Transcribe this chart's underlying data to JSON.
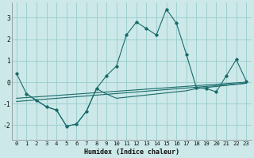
{
  "xlabel": "Humidex (Indice chaleur)",
  "ylabel": "",
  "background_color": "#cce8e8",
  "grid_color": "#99cccc",
  "line_color": "#1a6b6b",
  "xlim": [
    -0.5,
    23.5
  ],
  "ylim": [
    -2.7,
    3.7
  ],
  "yticks": [
    -2,
    -1,
    0,
    1,
    2,
    3
  ],
  "xticks": [
    0,
    1,
    2,
    3,
    4,
    5,
    6,
    7,
    8,
    9,
    10,
    11,
    12,
    13,
    14,
    15,
    16,
    17,
    18,
    19,
    20,
    21,
    22,
    23
  ],
  "series1_x": [
    0,
    1,
    2,
    3,
    4,
    5,
    6,
    7,
    8,
    9,
    10,
    11,
    12,
    13,
    14,
    15,
    16,
    17,
    18,
    19,
    20,
    21,
    22,
    23
  ],
  "series1_y": [
    0.4,
    -0.55,
    -0.85,
    -1.15,
    -1.3,
    -2.05,
    -1.95,
    -1.35,
    -0.3,
    0.3,
    0.75,
    2.2,
    2.8,
    2.5,
    2.2,
    3.4,
    2.75,
    1.3,
    -0.25,
    -0.3,
    -0.45,
    0.3,
    1.05,
    0.05
  ],
  "series2_x": [
    1,
    2,
    3,
    4,
    5,
    6,
    7,
    8,
    9,
    10,
    11,
    12,
    13,
    14,
    15,
    16,
    17,
    18,
    19,
    20,
    21,
    22,
    23
  ],
  "series2_y": [
    -0.55,
    -0.85,
    -1.15,
    -1.3,
    -2.05,
    -1.95,
    -1.35,
    -0.3,
    -0.55,
    -0.75,
    -0.7,
    -0.65,
    -0.6,
    -0.55,
    -0.5,
    -0.45,
    -0.4,
    -0.3,
    -0.25,
    -0.2,
    -0.15,
    -0.1,
    -0.05
  ],
  "trend1_x": [
    0,
    23
  ],
  "trend1_y": [
    -0.9,
    -0.05
  ],
  "trend2_x": [
    0,
    23
  ],
  "trend2_y": [
    -0.75,
    0.0
  ]
}
